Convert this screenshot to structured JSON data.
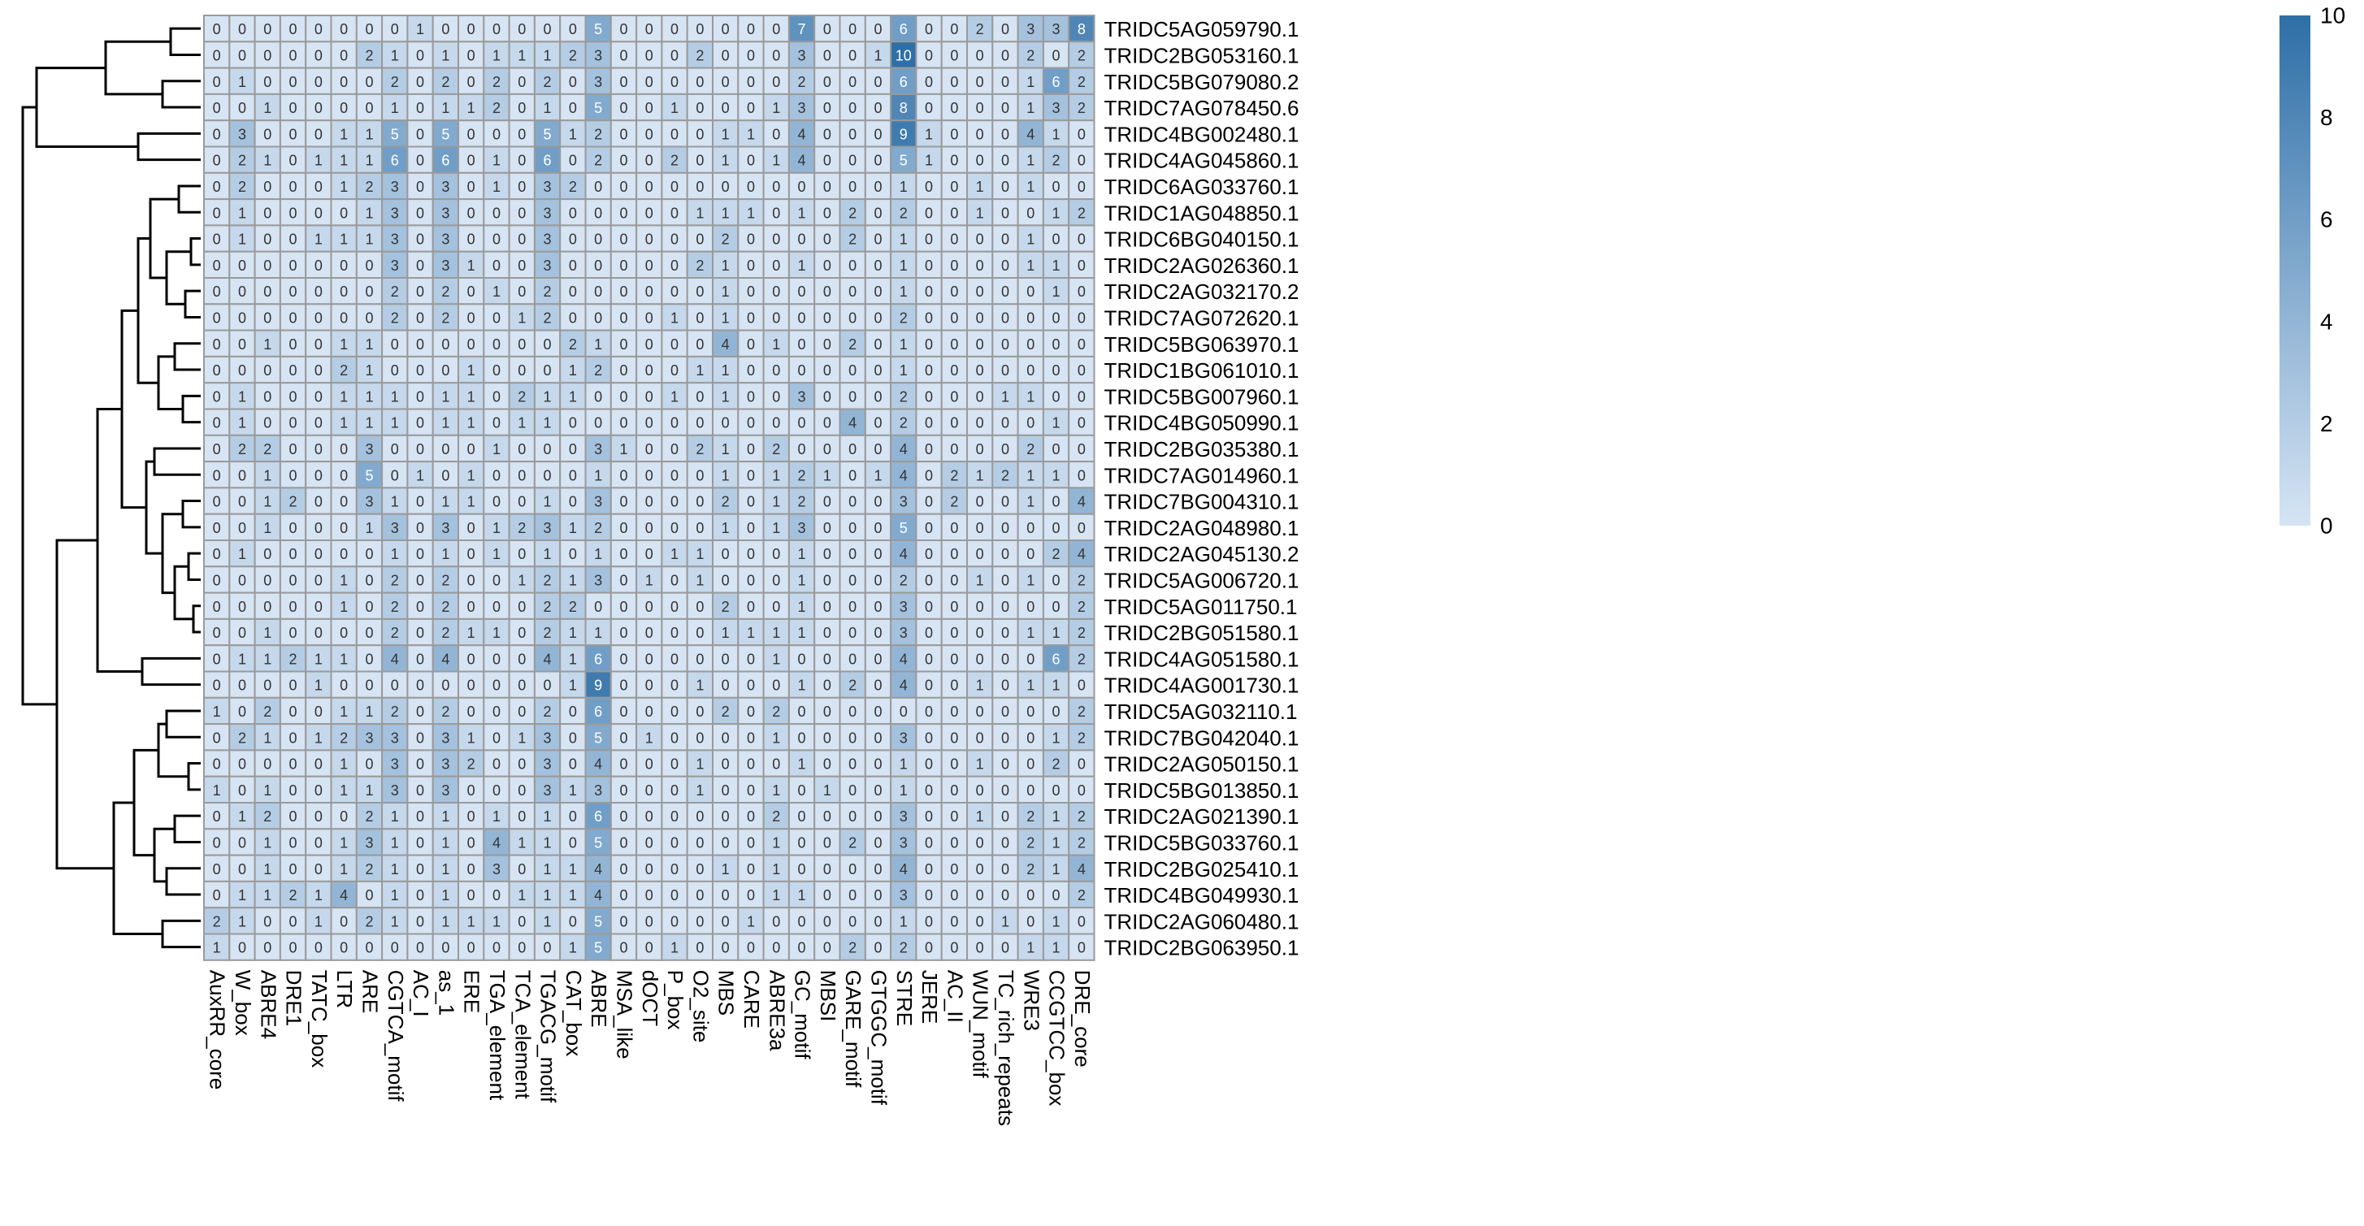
{
  "chart_data": {
    "type": "heatmap",
    "columns": [
      "AuxRR_core",
      "W_box",
      "ABRE4",
      "DRE1",
      "TATC_box",
      "LTR",
      "ARE",
      "CGTCA_motif",
      "AC_I",
      "as_1",
      "ERE",
      "TGA_element",
      "TCA_element",
      "TGACG_motif",
      "CAT_box",
      "ABRE",
      "MSA_like",
      "dOCT",
      "P_box",
      "O2_site",
      "MBS",
      "CARE",
      "ABRE3a",
      "GC_motif",
      "MBSI",
      "GARE_motif",
      "GTGGC_motif",
      "STRE",
      "JERE",
      "AC_II",
      "WUN_motif",
      "TC_rich_repeats",
      "WRE3",
      "CCGTCC_box",
      "DRE_core"
    ],
    "rows": [
      "TRIDC5AG059790.1",
      "TRIDC2BG053160.1",
      "TRIDC5BG079080.2",
      "TRIDC7AG078450.6",
      "TRIDC4BG002480.1",
      "TRIDC4AG045860.1",
      "TRIDC6AG033760.1",
      "TRIDC1AG048850.1",
      "TRIDC6BG040150.1",
      "TRIDC2AG026360.1",
      "TRIDC2AG032170.2",
      "TRIDC7AG072620.1",
      "TRIDC5BG063970.1",
      "TRIDC1BG061010.1",
      "TRIDC5BG007960.1",
      "TRIDC4BG050990.1",
      "TRIDC2BG035380.1",
      "TRIDC7AG014960.1",
      "TRIDC7BG004310.1",
      "TRIDC2AG048980.1",
      "TRIDC2AG045130.2",
      "TRIDC5AG006720.1",
      "TRIDC5AG011750.1",
      "TRIDC2BG051580.1",
      "TRIDC4AG051580.1",
      "TRIDC4AG001730.1",
      "TRIDC5AG032110.1",
      "TRIDC7BG042040.1",
      "TRIDC2AG050150.1",
      "TRIDC5BG013850.1",
      "TRIDC2AG021390.1",
      "TRIDC5BG033760.1",
      "TRIDC2BG025410.1",
      "TRIDC4BG049930.1",
      "TRIDC2AG060480.1",
      "TRIDC2BG063950.1"
    ],
    "values": [
      [
        0,
        0,
        0,
        0,
        0,
        0,
        0,
        0,
        1,
        0,
        0,
        0,
        0,
        0,
        0,
        5,
        0,
        0,
        0,
        0,
        0,
        0,
        0,
        7,
        0,
        0,
        0,
        6,
        0,
        0,
        2,
        0,
        3,
        3,
        8
      ],
      [
        0,
        0,
        0,
        0,
        0,
        0,
        2,
        1,
        0,
        1,
        0,
        1,
        1,
        1,
        2,
        3,
        0,
        0,
        0,
        2,
        0,
        0,
        0,
        3,
        0,
        0,
        1,
        10,
        0,
        0,
        0,
        0,
        2,
        0,
        2
      ],
      [
        0,
        1,
        0,
        0,
        0,
        0,
        0,
        2,
        0,
        2,
        0,
        2,
        0,
        2,
        0,
        3,
        0,
        0,
        0,
        0,
        0,
        0,
        0,
        2,
        0,
        0,
        0,
        6,
        0,
        0,
        0,
        0,
        1,
        6,
        2
      ],
      [
        0,
        0,
        1,
        0,
        0,
        0,
        0,
        1,
        0,
        1,
        1,
        2,
        0,
        1,
        0,
        5,
        0,
        0,
        1,
        0,
        0,
        0,
        1,
        3,
        0,
        0,
        0,
        8,
        0,
        0,
        0,
        0,
        1,
        3,
        2
      ],
      [
        0,
        3,
        0,
        0,
        0,
        1,
        1,
        5,
        0,
        5,
        0,
        0,
        0,
        5,
        1,
        2,
        0,
        0,
        0,
        0,
        1,
        1,
        0,
        4,
        0,
        0,
        0,
        9,
        1,
        0,
        0,
        0,
        4,
        1,
        0
      ],
      [
        0,
        2,
        1,
        0,
        1,
        1,
        1,
        6,
        0,
        6,
        0,
        1,
        0,
        6,
        0,
        2,
        0,
        0,
        2,
        0,
        1,
        0,
        1,
        4,
        0,
        0,
        0,
        5,
        1,
        0,
        0,
        0,
        1,
        2,
        0
      ],
      [
        0,
        2,
        0,
        0,
        0,
        1,
        2,
        3,
        0,
        3,
        0,
        1,
        0,
        3,
        2,
        0,
        0,
        0,
        0,
        0,
        0,
        0,
        0,
        0,
        0,
        0,
        0,
        1,
        0,
        0,
        1,
        0,
        1,
        0,
        0
      ],
      [
        0,
        1,
        0,
        0,
        0,
        0,
        1,
        3,
        0,
        3,
        0,
        0,
        0,
        3,
        0,
        0,
        0,
        0,
        0,
        1,
        1,
        1,
        0,
        1,
        0,
        2,
        0,
        2,
        0,
        0,
        1,
        0,
        0,
        1,
        2
      ],
      [
        0,
        1,
        0,
        0,
        1,
        1,
        1,
        3,
        0,
        3,
        0,
        0,
        0,
        3,
        0,
        0,
        0,
        0,
        0,
        0,
        2,
        0,
        0,
        0,
        0,
        2,
        0,
        1,
        0,
        0,
        0,
        0,
        1,
        0,
        0
      ],
      [
        0,
        0,
        0,
        0,
        0,
        0,
        0,
        3,
        0,
        3,
        1,
        0,
        0,
        3,
        0,
        0,
        0,
        0,
        0,
        2,
        1,
        0,
        0,
        1,
        0,
        0,
        0,
        1,
        0,
        0,
        0,
        0,
        1,
        1,
        0
      ],
      [
        0,
        0,
        0,
        0,
        0,
        0,
        0,
        2,
        0,
        2,
        0,
        1,
        0,
        2,
        0,
        0,
        0,
        0,
        0,
        0,
        1,
        0,
        0,
        0,
        0,
        0,
        0,
        1,
        0,
        0,
        0,
        0,
        0,
        1,
        0
      ],
      [
        0,
        0,
        0,
        0,
        0,
        0,
        0,
        2,
        0,
        2,
        0,
        0,
        1,
        2,
        0,
        0,
        0,
        0,
        1,
        0,
        1,
        0,
        0,
        0,
        0,
        0,
        0,
        2,
        0,
        0,
        0,
        0,
        0,
        0,
        0
      ],
      [
        0,
        0,
        1,
        0,
        0,
        1,
        1,
        0,
        0,
        0,
        0,
        0,
        0,
        0,
        2,
        1,
        0,
        0,
        0,
        0,
        4,
        0,
        1,
        0,
        0,
        2,
        0,
        1,
        0,
        0,
        0,
        0,
        0,
        0,
        0
      ],
      [
        0,
        0,
        0,
        0,
        0,
        2,
        1,
        0,
        0,
        0,
        1,
        0,
        0,
        0,
        1,
        2,
        0,
        0,
        0,
        1,
        1,
        0,
        0,
        0,
        0,
        0,
        0,
        1,
        0,
        0,
        0,
        0,
        0,
        0,
        0
      ],
      [
        0,
        1,
        0,
        0,
        0,
        1,
        1,
        1,
        0,
        1,
        1,
        0,
        2,
        1,
        1,
        0,
        0,
        0,
        1,
        0,
        1,
        0,
        0,
        3,
        0,
        0,
        0,
        2,
        0,
        0,
        0,
        1,
        1,
        0,
        0
      ],
      [
        0,
        1,
        0,
        0,
        0,
        1,
        1,
        1,
        0,
        1,
        1,
        0,
        1,
        1,
        0,
        0,
        0,
        0,
        0,
        0,
        0,
        0,
        0,
        0,
        0,
        4,
        0,
        2,
        0,
        0,
        0,
        0,
        0,
        1,
        0
      ],
      [
        0,
        2,
        2,
        0,
        0,
        0,
        3,
        0,
        0,
        0,
        0,
        1,
        0,
        0,
        0,
        3,
        1,
        0,
        0,
        2,
        1,
        0,
        2,
        0,
        0,
        0,
        0,
        4,
        0,
        0,
        0,
        0,
        2,
        0,
        0
      ],
      [
        0,
        0,
        1,
        0,
        0,
        0,
        5,
        0,
        1,
        0,
        1,
        0,
        0,
        0,
        0,
        1,
        0,
        0,
        0,
        0,
        1,
        0,
        1,
        2,
        1,
        0,
        1,
        4,
        0,
        2,
        1,
        2,
        1,
        1,
        0
      ],
      [
        0,
        0,
        1,
        2,
        0,
        0,
        3,
        1,
        0,
        1,
        1,
        0,
        0,
        1,
        0,
        3,
        0,
        0,
        0,
        0,
        2,
        0,
        1,
        2,
        0,
        0,
        0,
        3,
        0,
        2,
        0,
        0,
        1,
        0,
        4
      ],
      [
        0,
        0,
        1,
        0,
        0,
        0,
        1,
        3,
        0,
        3,
        0,
        1,
        2,
        3,
        1,
        2,
        0,
        0,
        0,
        0,
        1,
        0,
        1,
        3,
        0,
        0,
        0,
        5,
        0,
        0,
        0,
        0,
        0,
        0,
        0
      ],
      [
        0,
        1,
        0,
        0,
        0,
        0,
        0,
        1,
        0,
        1,
        0,
        1,
        0,
        1,
        0,
        1,
        0,
        0,
        1,
        1,
        0,
        0,
        0,
        1,
        0,
        0,
        0,
        4,
        0,
        0,
        0,
        0,
        0,
        2,
        4
      ],
      [
        0,
        0,
        0,
        0,
        0,
        1,
        0,
        2,
        0,
        2,
        0,
        0,
        1,
        2,
        1,
        3,
        0,
        1,
        0,
        1,
        0,
        0,
        0,
        1,
        0,
        0,
        0,
        2,
        0,
        0,
        1,
        0,
        1,
        0,
        2
      ],
      [
        0,
        0,
        0,
        0,
        0,
        1,
        0,
        2,
        0,
        2,
        0,
        0,
        0,
        2,
        2,
        0,
        0,
        0,
        0,
        0,
        2,
        0,
        0,
        1,
        0,
        0,
        0,
        3,
        0,
        0,
        0,
        0,
        0,
        0,
        2
      ],
      [
        0,
        0,
        1,
        0,
        0,
        0,
        0,
        2,
        0,
        2,
        1,
        1,
        0,
        2,
        1,
        1,
        0,
        0,
        0,
        0,
        1,
        1,
        1,
        1,
        0,
        0,
        0,
        3,
        0,
        0,
        0,
        0,
        1,
        1,
        2
      ],
      [
        0,
        1,
        1,
        2,
        1,
        1,
        0,
        4,
        0,
        4,
        0,
        0,
        0,
        4,
        1,
        6,
        0,
        0,
        0,
        0,
        0,
        0,
        1,
        0,
        0,
        0,
        0,
        4,
        0,
        0,
        0,
        0,
        0,
        6,
        2
      ],
      [
        0,
        0,
        0,
        0,
        1,
        0,
        0,
        0,
        0,
        0,
        0,
        0,
        0,
        0,
        1,
        9,
        0,
        0,
        0,
        1,
        0,
        0,
        0,
        1,
        0,
        2,
        0,
        4,
        0,
        0,
        1,
        0,
        1,
        1,
        0
      ],
      [
        1,
        0,
        2,
        0,
        0,
        1,
        1,
        2,
        0,
        2,
        0,
        0,
        0,
        2,
        0,
        6,
        0,
        0,
        0,
        0,
        2,
        0,
        2,
        0,
        0,
        0,
        0,
        0,
        0,
        0,
        0,
        0,
        0,
        0,
        2
      ],
      [
        0,
        2,
        1,
        0,
        1,
        2,
        3,
        3,
        0,
        3,
        1,
        0,
        1,
        3,
        0,
        5,
        0,
        1,
        0,
        0,
        0,
        0,
        1,
        0,
        0,
        0,
        0,
        3,
        0,
        0,
        0,
        0,
        0,
        1,
        2
      ],
      [
        0,
        0,
        0,
        0,
        0,
        1,
        0,
        3,
        0,
        3,
        2,
        0,
        0,
        3,
        0,
        4,
        0,
        0,
        0,
        1,
        0,
        0,
        0,
        1,
        0,
        0,
        0,
        1,
        0,
        0,
        1,
        0,
        0,
        2,
        0
      ],
      [
        1,
        0,
        1,
        0,
        0,
        1,
        1,
        3,
        0,
        3,
        0,
        0,
        0,
        3,
        1,
        3,
        0,
        0,
        0,
        1,
        0,
        0,
        1,
        0,
        1,
        0,
        0,
        1,
        0,
        0,
        0,
        0,
        0,
        0,
        0
      ],
      [
        0,
        1,
        2,
        0,
        0,
        0,
        2,
        1,
        0,
        1,
        0,
        1,
        0,
        1,
        0,
        6,
        0,
        0,
        0,
        0,
        0,
        0,
        2,
        0,
        0,
        0,
        0,
        3,
        0,
        0,
        1,
        0,
        2,
        1,
        2
      ],
      [
        0,
        0,
        1,
        0,
        0,
        1,
        3,
        1,
        0,
        1,
        0,
        4,
        1,
        1,
        0,
        5,
        0,
        0,
        0,
        0,
        0,
        0,
        1,
        0,
        0,
        2,
        0,
        3,
        0,
        0,
        0,
        0,
        2,
        1,
        2
      ],
      [
        0,
        0,
        1,
        0,
        0,
        1,
        2,
        1,
        0,
        1,
        0,
        3,
        0,
        1,
        1,
        4,
        0,
        0,
        0,
        0,
        1,
        0,
        1,
        0,
        0,
        0,
        0,
        4,
        0,
        0,
        0,
        0,
        2,
        1,
        4
      ],
      [
        0,
        1,
        1,
        2,
        1,
        4,
        0,
        1,
        0,
        1,
        0,
        0,
        1,
        1,
        1,
        4,
        0,
        0,
        0,
        0,
        0,
        0,
        1,
        1,
        0,
        0,
        0,
        3,
        0,
        0,
        0,
        0,
        0,
        0,
        2
      ],
      [
        2,
        1,
        0,
        0,
        1,
        0,
        2,
        1,
        0,
        1,
        1,
        1,
        0,
        1,
        0,
        5,
        0,
        0,
        0,
        0,
        0,
        1,
        0,
        0,
        0,
        0,
        0,
        1,
        0,
        0,
        0,
        1,
        0,
        1,
        0
      ],
      [
        1,
        0,
        0,
        0,
        0,
        0,
        0,
        0,
        0,
        0,
        0,
        0,
        0,
        0,
        1,
        5,
        0,
        0,
        1,
        0,
        0,
        0,
        0,
        0,
        0,
        2,
        0,
        2,
        0,
        0,
        0,
        0,
        1,
        1,
        0
      ]
    ],
    "color_scale": {
      "min": 0,
      "max": 10,
      "low": "#d6e4f4",
      "high": "#2e6fa7"
    },
    "legend_ticks": [
      "0",
      "2",
      "4",
      "6",
      "8",
      "10"
    ],
    "row_dendrogram": true,
    "grid": true
  }
}
